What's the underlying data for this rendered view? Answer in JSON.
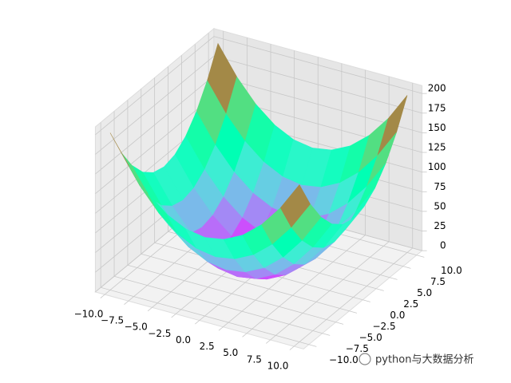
{
  "chart_data": {
    "type": "surface",
    "colormap": "rainbow",
    "x": [
      -10,
      -8,
      -6,
      -4,
      -2,
      0,
      2,
      4,
      6,
      8,
      10
    ],
    "y": [
      -10,
      -8,
      -6,
      -4,
      -2,
      0,
      2,
      4,
      6,
      8,
      10
    ],
    "z": [
      [
        200,
        164,
        136,
        116,
        104,
        100,
        104,
        116,
        136,
        164,
        200
      ],
      [
        164,
        128,
        100,
        80,
        68,
        64,
        68,
        80,
        100,
        128,
        164
      ],
      [
        136,
        100,
        72,
        52,
        40,
        36,
        40,
        52,
        72,
        100,
        136
      ],
      [
        116,
        80,
        52,
        32,
        20,
        16,
        20,
        32,
        52,
        80,
        116
      ],
      [
        104,
        68,
        40,
        20,
        8,
        4,
        8,
        20,
        40,
        68,
        104
      ],
      [
        100,
        64,
        36,
        16,
        4,
        0,
        4,
        16,
        36,
        64,
        100
      ],
      [
        104,
        68,
        40,
        20,
        8,
        4,
        8,
        20,
        40,
        68,
        104
      ],
      [
        116,
        80,
        52,
        32,
        20,
        16,
        20,
        32,
        52,
        80,
        116
      ],
      [
        136,
        100,
        72,
        52,
        40,
        36,
        40,
        52,
        72,
        100,
        136
      ],
      [
        164,
        128,
        100,
        80,
        68,
        64,
        68,
        80,
        100,
        128,
        164
      ],
      [
        200,
        164,
        136,
        116,
        104,
        100,
        104,
        116,
        136,
        164,
        200
      ]
    ],
    "xlim": [
      -10,
      10
    ],
    "ylim": [
      -10,
      10
    ],
    "zlim": [
      0,
      200
    ],
    "xticks": [
      {
        "value": -10,
        "label": "−10.0"
      },
      {
        "value": -7.5,
        "label": "−7.5"
      },
      {
        "value": -5,
        "label": "−5.0"
      },
      {
        "value": -2.5,
        "label": "−2.5"
      },
      {
        "value": 0,
        "label": "0.0"
      },
      {
        "value": 2.5,
        "label": "2.5"
      },
      {
        "value": 5,
        "label": "5.0"
      },
      {
        "value": 7.5,
        "label": "7.5"
      },
      {
        "value": 10,
        "label": "10.0"
      }
    ],
    "yticks": [
      {
        "value": -10,
        "label": "−10.0"
      },
      {
        "value": -7.5,
        "label": "−7.5"
      },
      {
        "value": -5,
        "label": "−5.0"
      },
      {
        "value": -2.5,
        "label": "−2.5"
      },
      {
        "value": 0,
        "label": "0.0"
      },
      {
        "value": 2.5,
        "label": "2.5"
      },
      {
        "value": 5,
        "label": "5.0"
      },
      {
        "value": 7.5,
        "label": "7.5"
      },
      {
        "value": 10,
        "label": "10.0"
      }
    ],
    "zticks": [
      0,
      25,
      50,
      75,
      100,
      125,
      150,
      175,
      200
    ],
    "grid": true,
    "watermark": "python与大数据分析"
  }
}
